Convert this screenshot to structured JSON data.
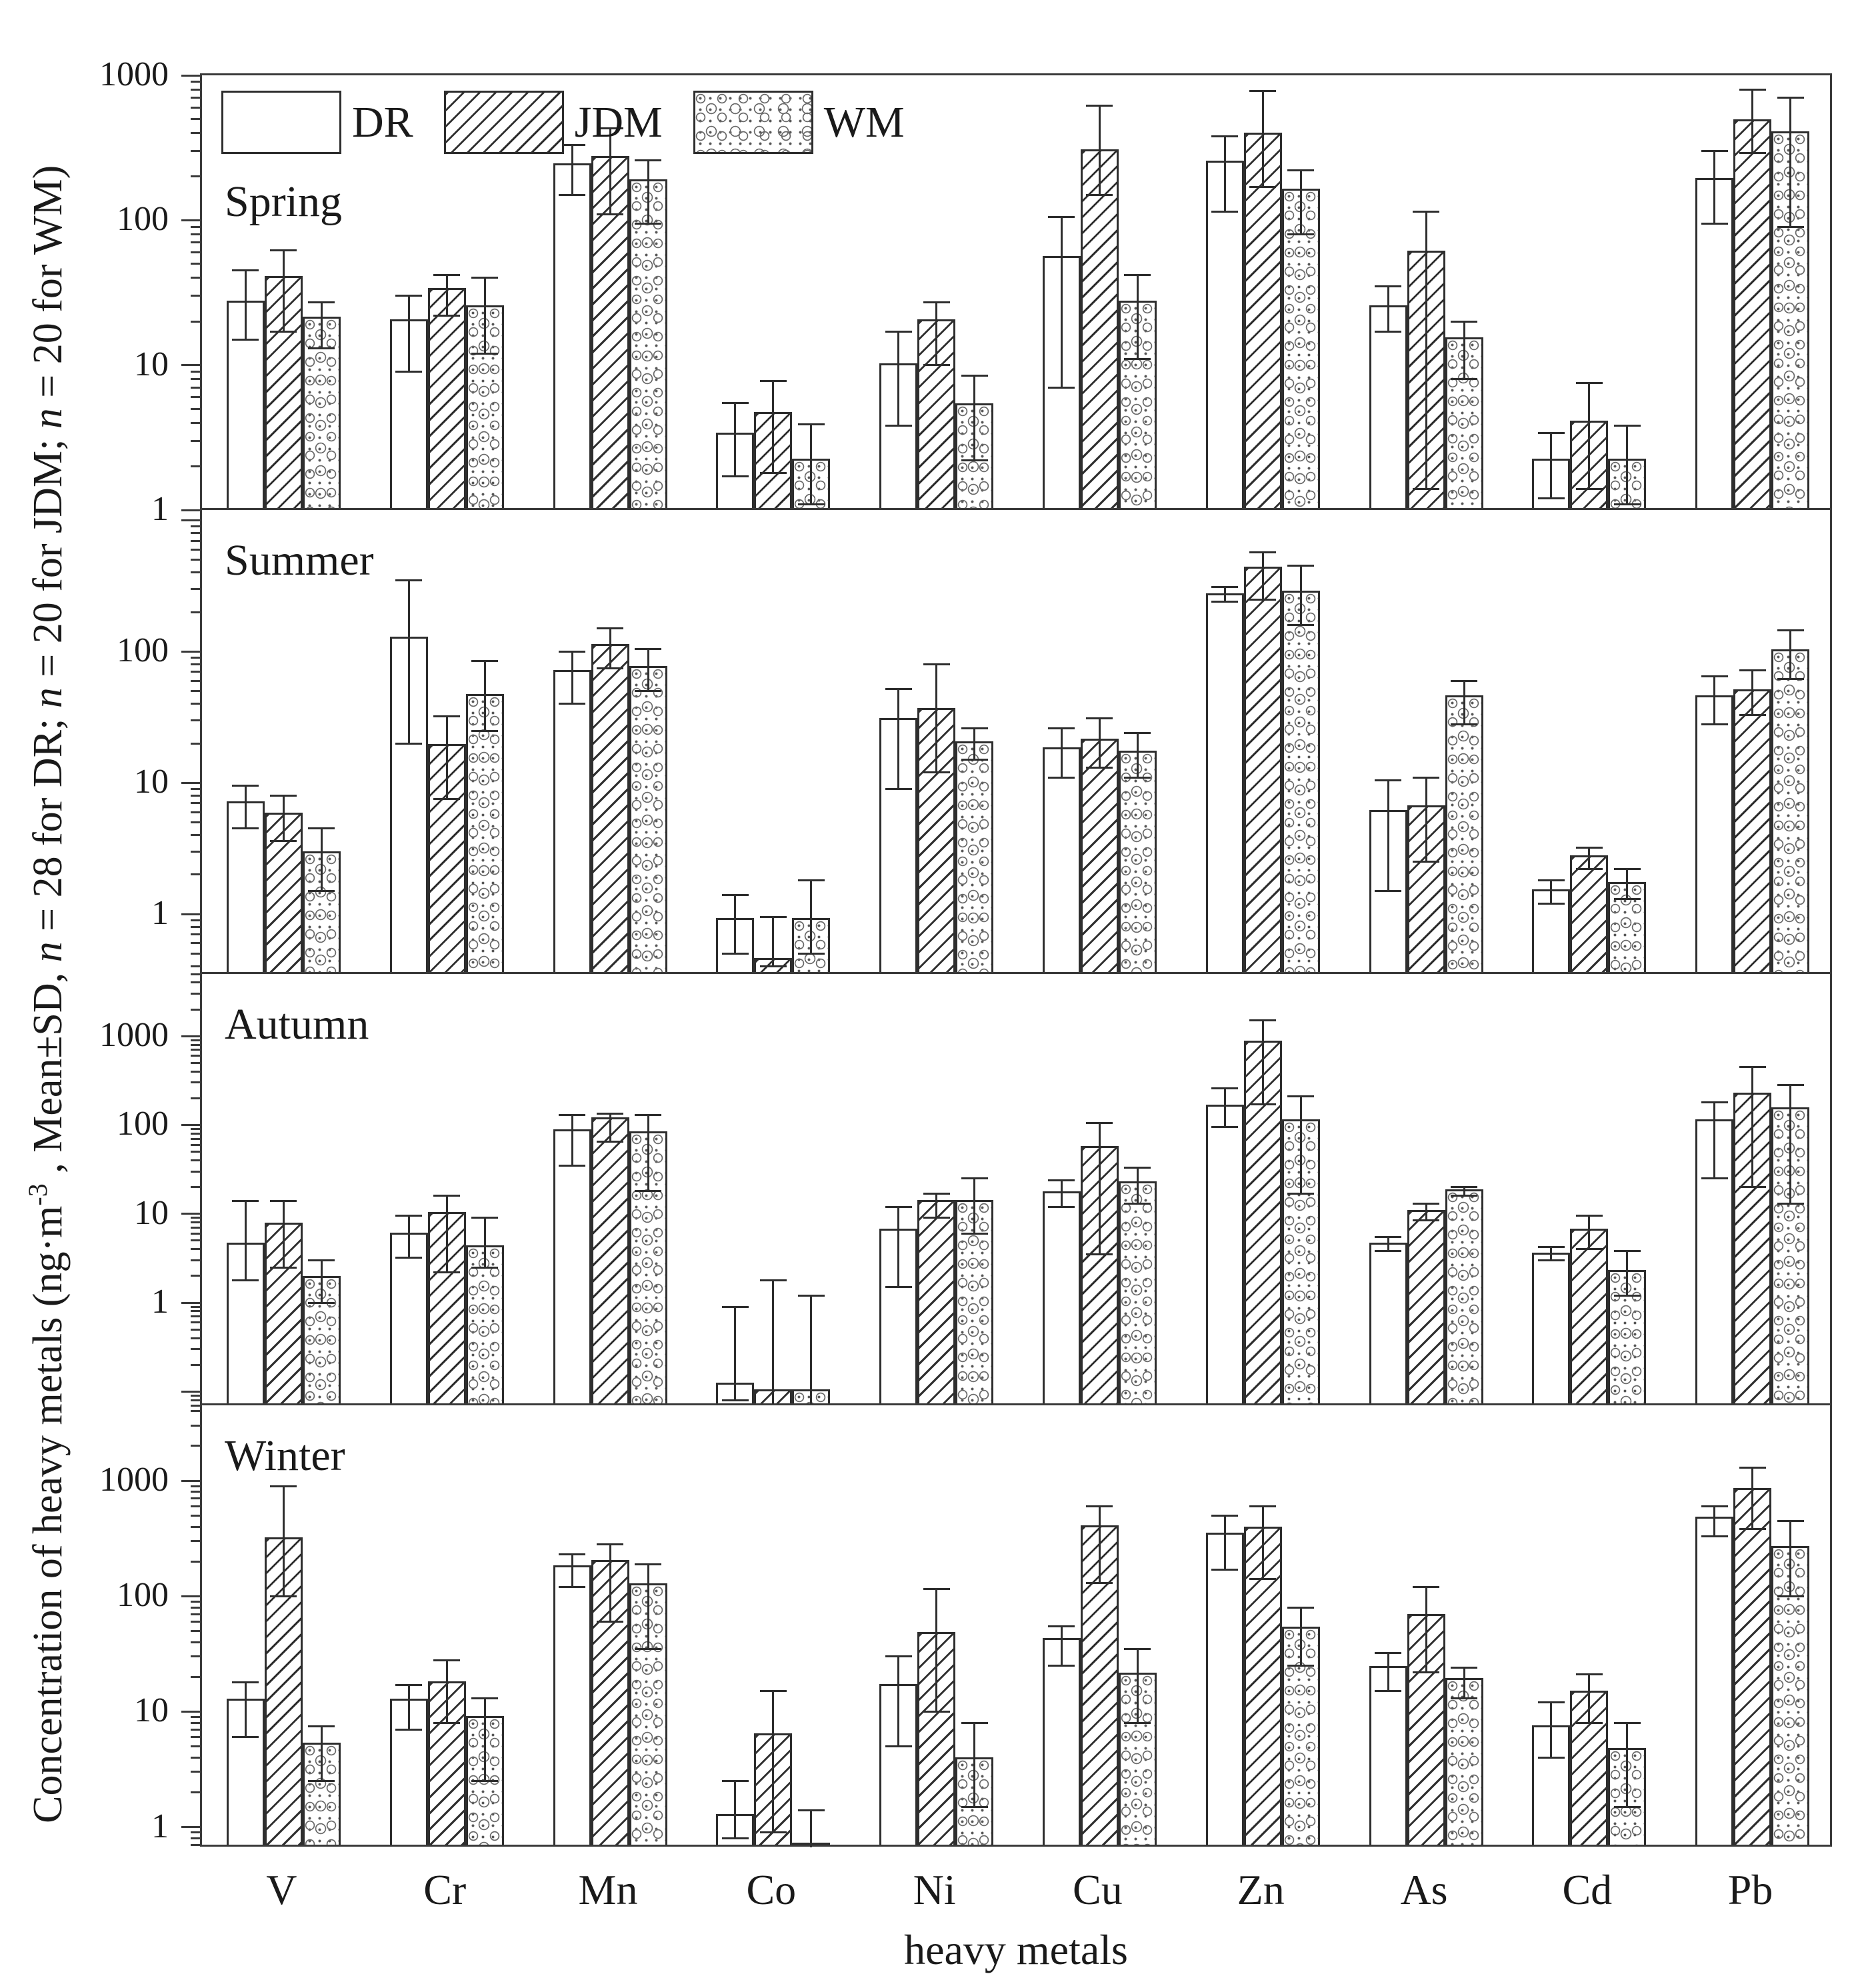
{
  "figure": {
    "xlabel": "heavy metals",
    "ylabel_parts": [
      {
        "text": "Concentration of heavy metals (ng·m"
      },
      {
        "text": "-3",
        "sup": true
      },
      {
        "text": " , Mean±SD, "
      },
      {
        "text": "n",
        "italic": true
      },
      {
        "text": " = 28 for DR;  "
      },
      {
        "text": "n",
        "italic": true
      },
      {
        "text": " = 20 for JDM;  "
      },
      {
        "text": "n",
        "italic": true
      },
      {
        "text": " = 20 for WM)"
      }
    ]
  },
  "chart_data": {
    "type": "bar",
    "scale": "log",
    "grid": false,
    "legend_position": "top-left-inside-first-panel",
    "categories": [
      "V",
      "Cr",
      "Mn",
      "Co",
      "Ni",
      "Cu",
      "Zn",
      "As",
      "Cd",
      "Pb"
    ],
    "xlabel": "heavy metals",
    "legend": [
      {
        "label": "DR",
        "pattern": "plain"
      },
      {
        "label": "JDM",
        "pattern": "hatch"
      },
      {
        "label": "WM",
        "pattern": "stone"
      }
    ],
    "panels": [
      {
        "label": "Spring",
        "ymin": 1,
        "ymax": 1000,
        "yticks": [
          1000,
          100,
          10,
          1
        ],
        "series": [
          {
            "name": "DR",
            "pattern": "plain",
            "mean": [
              27,
              20,
              240,
              3.3,
              10,
              55,
              250,
              25,
              2.2,
              190
            ],
            "lo": [
              15,
              9,
              150,
              1.7,
              3.8,
              7,
              115,
              17,
              1.2,
              95
            ],
            "hi": [
              45,
              30,
              330,
              5.5,
              17,
              105,
              380,
              35,
              3.4,
              300
            ]
          },
          {
            "name": "JDM",
            "pattern": "hatch",
            "mean": [
              40,
              33,
              270,
              4.6,
              20,
              300,
              390,
              60,
              4,
              480
            ],
            "lo": [
              17,
              22,
              110,
              1.8,
              10,
              150,
              170,
              1.4,
              1.4,
              290
            ],
            "hi": [
              62,
              42,
              430,
              7.8,
              27,
              620,
              780,
              115,
              7.5,
              800
            ]
          },
          {
            "name": "WM",
            "pattern": "stone",
            "mean": [
              21,
              25,
              185,
              2.2,
              5.3,
              27,
              160,
              15,
              2.2,
              400
            ],
            "lo": [
              13,
              12,
              95,
              1.1,
              2.2,
              11,
              80,
              8,
              1.1,
              90
            ],
            "hi": [
              27,
              40,
              260,
              3.9,
              8.5,
              42,
              220,
              20,
              3.8,
              700
            ]
          }
        ]
      },
      {
        "label": "Summer",
        "ymin": 0.35,
        "ymax": 1200,
        "yticks": [
          100,
          10,
          1
        ],
        "series": [
          {
            "name": "DR",
            "pattern": "plain",
            "mean": [
              7,
              125,
              70,
              0.9,
              30,
              18,
              270,
              6,
              1.5,
              45
            ],
            "lo": [
              4.5,
              20,
              40,
              0.5,
              9,
              11,
              240,
              1.5,
              1.2,
              28
            ],
            "hi": [
              9.5,
              350,
              100,
              1.4,
              52,
              26,
              310,
              10.5,
              1.8,
              65
            ]
          },
          {
            "name": "JDM",
            "pattern": "hatch",
            "mean": [
              5.7,
              19,
              110,
              0.45,
              36,
              21,
              430,
              6.5,
              2.7,
              50
            ],
            "lo": [
              3.6,
              7.5,
              75,
              0.4,
              12,
              13,
              250,
              2.5,
              2.2,
              33
            ],
            "hi": [
              8,
              32,
              150,
              0.95,
              80,
              31,
              570,
              11,
              3.2,
              72
            ]
          },
          {
            "name": "WM",
            "pattern": "stone",
            "mean": [
              2.9,
              46,
              75,
              0.9,
              20,
              17,
              280,
              45,
              1.7,
              100
            ],
            "lo": [
              1.5,
              25,
              50,
              0.5,
              15,
              11,
              160,
              28,
              1.3,
              62
            ],
            "hi": [
              4.5,
              85,
              105,
              1.8,
              26,
              24,
              450,
              60,
              2.2,
              145
            ]
          }
        ]
      },
      {
        "label": "Autumn",
        "ymin": 0.07,
        "ymax": 5000,
        "yticks": [
          1000,
          100,
          10,
          1
        ],
        "series": [
          {
            "name": "DR",
            "pattern": "plain",
            "mean": [
              4.5,
              5.8,
              85,
              0.12,
              6.5,
              17,
              160,
              4.5,
              3.5,
              110
            ],
            "lo": [
              1.8,
              3.2,
              35,
              0.08,
              1.5,
              12,
              95,
              3.8,
              3,
              25
            ],
            "hi": [
              14,
              9.5,
              130,
              0.9,
              12,
              24,
              260,
              5.5,
              4.2,
              180
            ]
          },
          {
            "name": "JDM",
            "pattern": "hatch",
            "mean": [
              7.5,
              10,
              115,
              0.1,
              13.5,
              55,
              850,
              10.5,
              6.5,
              220
            ],
            "lo": [
              2.5,
              2.2,
              65,
              0.07,
              9,
              3.5,
              170,
              8.5,
              4,
              20
            ],
            "hi": [
              14,
              16,
              135,
              1.8,
              17,
              105,
              1500,
              13,
              9.5,
              450
            ]
          },
          {
            "name": "WM",
            "pattern": "stone",
            "mean": [
              1.9,
              4.2,
              80,
              0.1,
              13.5,
              22,
              110,
              18,
              2.2,
              150
            ],
            "lo": [
              1,
              2.5,
              18,
              0.07,
              6,
              13,
              17,
              16,
              1.2,
              13
            ],
            "hi": [
              3,
              9,
              130,
              1.2,
              25,
              33,
              210,
              20,
              3.8,
              280
            ]
          }
        ]
      },
      {
        "label": "Winter",
        "ymin": 0.65,
        "ymax": 4500,
        "yticks": [
          1000,
          100,
          10,
          1
        ],
        "series": [
          {
            "name": "DR",
            "pattern": "plain",
            "mean": [
              12,
              12,
              170,
              1.2,
              16,
              40,
              330,
              23,
              7,
              450
            ],
            "lo": [
              6,
              7,
              120,
              0.8,
              5,
              25,
              170,
              15,
              4,
              330
            ],
            "hi": [
              18,
              17,
              230,
              2.5,
              30,
              55,
              500,
              32,
              12,
              600
            ]
          },
          {
            "name": "JDM",
            "pattern": "hatch",
            "mean": [
              300,
              17,
              190,
              6,
              45,
              380,
              370,
              65,
              14,
              800
            ],
            "lo": [
              100,
              8,
              60,
              0.9,
              10,
              130,
              140,
              22,
              8,
              380
            ],
            "hi": [
              900,
              28,
              280,
              15,
              115,
              600,
              600,
              120,
              21,
              1300
            ]
          },
          {
            "name": "WM",
            "pattern": "stone",
            "mean": [
              5,
              8.5,
              120,
              0.68,
              3.7,
              20,
              50,
              18,
              4.5,
              250
            ],
            "lo": [
              2.5,
              2.5,
              35,
              0.66,
              1.5,
              8,
              25,
              13,
              1.5,
              100
            ],
            "hi": [
              7.5,
              13,
              190,
              1.4,
              8,
              35,
              80,
              24,
              8,
              450
            ]
          }
        ]
      }
    ]
  }
}
